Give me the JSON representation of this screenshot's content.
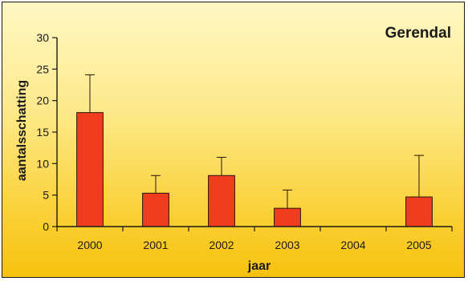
{
  "chart_data": {
    "type": "bar",
    "title": "Gerendal",
    "xlabel": "jaar",
    "ylabel": "aantalsschatting",
    "ylim": [
      0,
      30
    ],
    "yticks": [
      0,
      5,
      10,
      15,
      20,
      25,
      30
    ],
    "categories": [
      "2000",
      "2001",
      "2002",
      "2003",
      "2004",
      "2005"
    ],
    "values": [
      18.1,
      5.3,
      8.1,
      2.9,
      null,
      4.7
    ],
    "error_upper": [
      24.1,
      8.1,
      11.0,
      5.8,
      null,
      11.3
    ],
    "grid": false,
    "legend": "none",
    "colors": {
      "bar": "#f03d1f",
      "axis": "#1a1a1a",
      "background_top": "#fff8c4",
      "background_bottom": "#f7c20e"
    }
  }
}
